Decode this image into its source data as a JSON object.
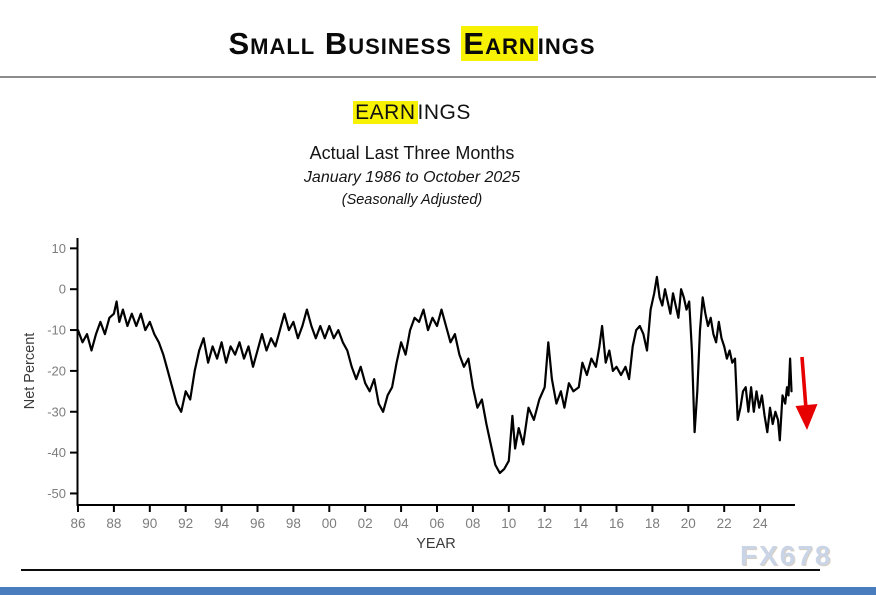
{
  "header": {
    "title_pre": "Small Business ",
    "title_highlight": "Earn",
    "title_post": "ings"
  },
  "subtitle": {
    "series_highlight": "EARN",
    "series_rest": "INGS",
    "line1": "Actual Last Three Months",
    "line2": "January 1986 to October 2025",
    "line3": "(Seasonally Adjusted)"
  },
  "watermark": "FX678",
  "colors": {
    "highlight": "#f7f104",
    "line": "#000000",
    "arrow": "#e60000",
    "tick_text": "#7d7d7d",
    "axis_title_text": "#3a3a3a",
    "footer_bar": "#4a7dbe"
  },
  "chart_data": {
    "type": "line",
    "title": "EARNINGS",
    "xlabel": "YEAR",
    "ylabel": "Net Percent",
    "ylim": [
      -50,
      10
    ],
    "xlim": [
      1986,
      2026
    ],
    "grid": false,
    "legend": "none",
    "yticks": [
      10,
      0,
      -10,
      -20,
      -30,
      -40,
      -50
    ],
    "x_tick_years": [
      1986,
      1988,
      1990,
      1992,
      1994,
      1996,
      1998,
      2000,
      2002,
      2004,
      2006,
      2008,
      2010,
      2012,
      2014,
      2016,
      2018,
      2020,
      2022,
      2024
    ],
    "x_tick_labels": [
      "86",
      "88",
      "90",
      "92",
      "94",
      "96",
      "98",
      "00",
      "02",
      "04",
      "06",
      "08",
      "10",
      "12",
      "14",
      "16",
      "18",
      "20",
      "22",
      "24"
    ],
    "points": [
      [
        1986.0,
        -10
      ],
      [
        1986.25,
        -13
      ],
      [
        1986.5,
        -11
      ],
      [
        1986.75,
        -15
      ],
      [
        1987.0,
        -11
      ],
      [
        1987.25,
        -8
      ],
      [
        1987.5,
        -11
      ],
      [
        1987.75,
        -7
      ],
      [
        1988.0,
        -6
      ],
      [
        1988.15,
        -3
      ],
      [
        1988.3,
        -8
      ],
      [
        1988.5,
        -5
      ],
      [
        1988.75,
        -9
      ],
      [
        1989.0,
        -6
      ],
      [
        1989.25,
        -9
      ],
      [
        1989.5,
        -6
      ],
      [
        1989.75,
        -10
      ],
      [
        1990.0,
        -8
      ],
      [
        1990.25,
        -11
      ],
      [
        1990.5,
        -13
      ],
      [
        1990.75,
        -16
      ],
      [
        1991.0,
        -20
      ],
      [
        1991.25,
        -24
      ],
      [
        1991.5,
        -28
      ],
      [
        1991.75,
        -30
      ],
      [
        1992.0,
        -25
      ],
      [
        1992.25,
        -27
      ],
      [
        1992.5,
        -20
      ],
      [
        1992.75,
        -15
      ],
      [
        1993.0,
        -12
      ],
      [
        1993.25,
        -18
      ],
      [
        1993.5,
        -14
      ],
      [
        1993.75,
        -17
      ],
      [
        1994.0,
        -13
      ],
      [
        1994.25,
        -18
      ],
      [
        1994.5,
        -14
      ],
      [
        1994.75,
        -16
      ],
      [
        1995.0,
        -13
      ],
      [
        1995.25,
        -17
      ],
      [
        1995.5,
        -14
      ],
      [
        1995.75,
        -19
      ],
      [
        1996.0,
        -15
      ],
      [
        1996.25,
        -11
      ],
      [
        1996.5,
        -15
      ],
      [
        1996.75,
        -12
      ],
      [
        1997.0,
        -14
      ],
      [
        1997.25,
        -10
      ],
      [
        1997.5,
        -6
      ],
      [
        1997.75,
        -10
      ],
      [
        1998.0,
        -8
      ],
      [
        1998.25,
        -12
      ],
      [
        1998.5,
        -9
      ],
      [
        1998.75,
        -5
      ],
      [
        1999.0,
        -9
      ],
      [
        1999.25,
        -12
      ],
      [
        1999.5,
        -9
      ],
      [
        1999.75,
        -12
      ],
      [
        2000.0,
        -9
      ],
      [
        2000.25,
        -12
      ],
      [
        2000.5,
        -10
      ],
      [
        2000.75,
        -13
      ],
      [
        2001.0,
        -15
      ],
      [
        2001.25,
        -19
      ],
      [
        2001.5,
        -22
      ],
      [
        2001.75,
        -19
      ],
      [
        2002.0,
        -23
      ],
      [
        2002.25,
        -25
      ],
      [
        2002.5,
        -22
      ],
      [
        2002.75,
        -28
      ],
      [
        2003.0,
        -30
      ],
      [
        2003.25,
        -26
      ],
      [
        2003.5,
        -24
      ],
      [
        2003.75,
        -18
      ],
      [
        2004.0,
        -13
      ],
      [
        2004.25,
        -16
      ],
      [
        2004.5,
        -10
      ],
      [
        2004.75,
        -7
      ],
      [
        2005.0,
        -8
      ],
      [
        2005.25,
        -5
      ],
      [
        2005.5,
        -10
      ],
      [
        2005.75,
        -7
      ],
      [
        2006.0,
        -9
      ],
      [
        2006.25,
        -5
      ],
      [
        2006.5,
        -9
      ],
      [
        2006.75,
        -13
      ],
      [
        2007.0,
        -11
      ],
      [
        2007.25,
        -16
      ],
      [
        2007.5,
        -19
      ],
      [
        2007.75,
        -17
      ],
      [
        2008.0,
        -24
      ],
      [
        2008.25,
        -29
      ],
      [
        2008.5,
        -27
      ],
      [
        2008.75,
        -33
      ],
      [
        2009.0,
        -38
      ],
      [
        2009.25,
        -43
      ],
      [
        2009.5,
        -45
      ],
      [
        2009.75,
        -44
      ],
      [
        2010.0,
        -42
      ],
      [
        2010.2,
        -31
      ],
      [
        2010.35,
        -39
      ],
      [
        2010.55,
        -34
      ],
      [
        2010.8,
        -38
      ],
      [
        2011.1,
        -29
      ],
      [
        2011.4,
        -32
      ],
      [
        2011.7,
        -27
      ],
      [
        2012.0,
        -24
      ],
      [
        2012.2,
        -13
      ],
      [
        2012.4,
        -22
      ],
      [
        2012.65,
        -28
      ],
      [
        2012.9,
        -25
      ],
      [
        2013.1,
        -29
      ],
      [
        2013.35,
        -23
      ],
      [
        2013.6,
        -25
      ],
      [
        2013.9,
        -24
      ],
      [
        2014.1,
        -18
      ],
      [
        2014.35,
        -21
      ],
      [
        2014.6,
        -17
      ],
      [
        2014.85,
        -19
      ],
      [
        2015.05,
        -14
      ],
      [
        2015.2,
        -9
      ],
      [
        2015.4,
        -18
      ],
      [
        2015.6,
        -15
      ],
      [
        2015.8,
        -20
      ],
      [
        2016.0,
        -19
      ],
      [
        2016.25,
        -21
      ],
      [
        2016.5,
        -19
      ],
      [
        2016.7,
        -22
      ],
      [
        2016.9,
        -14
      ],
      [
        2017.1,
        -10
      ],
      [
        2017.3,
        -9
      ],
      [
        2017.5,
        -11
      ],
      [
        2017.7,
        -15
      ],
      [
        2017.9,
        -5
      ],
      [
        2018.1,
        -1
      ],
      [
        2018.25,
        3
      ],
      [
        2018.4,
        -2
      ],
      [
        2018.55,
        -4
      ],
      [
        2018.7,
        0
      ],
      [
        2018.85,
        -3
      ],
      [
        2019.0,
        -6
      ],
      [
        2019.15,
        -1
      ],
      [
        2019.3,
        -4
      ],
      [
        2019.45,
        -7
      ],
      [
        2019.6,
        0
      ],
      [
        2019.75,
        -2
      ],
      [
        2019.9,
        -5
      ],
      [
        2020.05,
        -3
      ],
      [
        2020.2,
        -15
      ],
      [
        2020.35,
        -35
      ],
      [
        2020.5,
        -25
      ],
      [
        2020.65,
        -10
      ],
      [
        2020.8,
        -2
      ],
      [
        2020.95,
        -6
      ],
      [
        2021.1,
        -9
      ],
      [
        2021.25,
        -7
      ],
      [
        2021.4,
        -11
      ],
      [
        2021.55,
        -13
      ],
      [
        2021.7,
        -8
      ],
      [
        2021.85,
        -12
      ],
      [
        2022.0,
        -14
      ],
      [
        2022.15,
        -17
      ],
      [
        2022.3,
        -15
      ],
      [
        2022.45,
        -18
      ],
      [
        2022.6,
        -17
      ],
      [
        2022.75,
        -32
      ],
      [
        2022.9,
        -29
      ],
      [
        2023.05,
        -25
      ],
      [
        2023.2,
        -24
      ],
      [
        2023.35,
        -30
      ],
      [
        2023.5,
        -24
      ],
      [
        2023.65,
        -30
      ],
      [
        2023.8,
        -25
      ],
      [
        2023.95,
        -29
      ],
      [
        2024.1,
        -26
      ],
      [
        2024.25,
        -31
      ],
      [
        2024.4,
        -35
      ],
      [
        2024.55,
        -29
      ],
      [
        2024.7,
        -33
      ],
      [
        2024.85,
        -30
      ],
      [
        2025.0,
        -32
      ],
      [
        2025.1,
        -37
      ],
      [
        2025.25,
        -26
      ],
      [
        2025.4,
        -28
      ],
      [
        2025.5,
        -24
      ],
      [
        2025.58,
        -26
      ],
      [
        2025.67,
        -17
      ],
      [
        2025.75,
        -25
      ]
    ],
    "annotations": [
      {
        "type": "arrow",
        "direction": "down",
        "color": "#e60000",
        "meaning": "latest-value-decline"
      }
    ]
  }
}
